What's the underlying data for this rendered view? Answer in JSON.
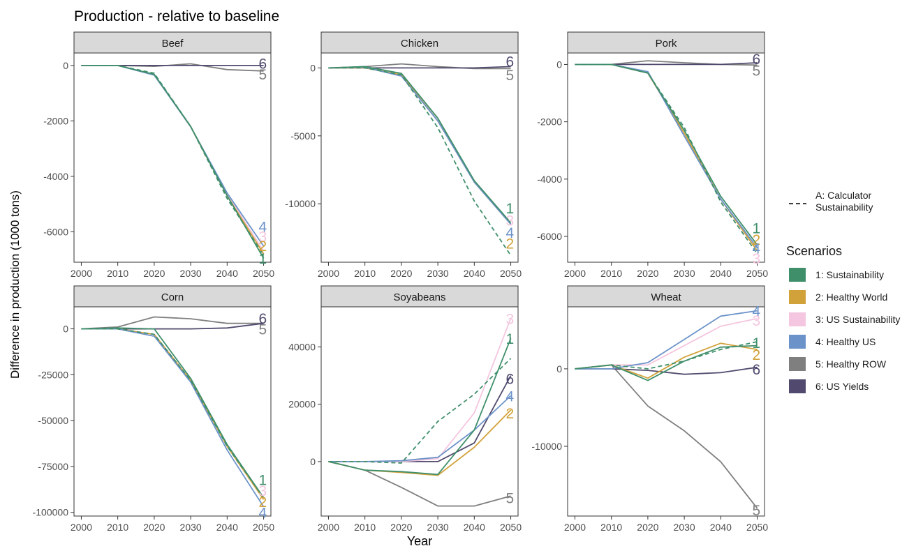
{
  "chart_data": {
    "type": "line",
    "title": "Production - relative to baseline",
    "xlabel": "Year",
    "ylabel": "Difference in production (1000 tons)",
    "x": [
      2000,
      2010,
      2020,
      2030,
      2040,
      2050
    ],
    "x_ticks": [
      "2000",
      "2010",
      "2020",
      "2030",
      "2040",
      "2050"
    ],
    "grid": false,
    "legend_position": "right",
    "legend_linetype_label": "A: Calculator Sustainability",
    "legend_title": "Scenarios",
    "scenarios": [
      {
        "id": "1",
        "name": "1: Sustainability",
        "color": "#3f8f6b"
      },
      {
        "id": "2",
        "name": "2: Healthy World",
        "color": "#d1a23a"
      },
      {
        "id": "3",
        "name": "3: US Sustainability",
        "color": "#f4c6df"
      },
      {
        "id": "4",
        "name": "4: Healthy US",
        "color": "#6c93c9"
      },
      {
        "id": "5",
        "name": "5: Healthy ROW",
        "color": "#7f7f7f"
      },
      {
        "id": "6",
        "name": "6: US Yields",
        "color": "#514a6e"
      }
    ],
    "panels": [
      {
        "title": "Beef",
        "ylim": [
          -7100,
          450
        ],
        "yticks": [
          0,
          -2000,
          -4000,
          -6000
        ],
        "ytick_labels": [
          "0",
          "-2000",
          "-4000",
          "-6000"
        ],
        "series": [
          {
            "id": "5",
            "values": [
              0,
              0,
              -30,
              60,
              -150,
              -200
            ]
          },
          {
            "id": "6",
            "values": [
              0,
              0,
              0,
              0,
              0,
              0
            ]
          },
          {
            "id": "3",
            "values": [
              0,
              0,
              -330,
              -2210,
              -4650,
              -6700
            ]
          },
          {
            "id": "2",
            "values": [
              0,
              0,
              -330,
              -2210,
              -4700,
              -6800
            ]
          },
          {
            "id": "4",
            "values": [
              0,
              0,
              -350,
              -2210,
              -4600,
              -6520
            ]
          },
          {
            "id": "1",
            "values": [
              0,
              0,
              -320,
              -2200,
              -4700,
              -6960
            ]
          },
          {
            "id": "A",
            "values": [
              0,
              0,
              -280,
              -2200,
              -4800,
              -6850
            ]
          }
        ],
        "end_labels": [
          {
            "text": "6",
            "id": "6",
            "y": 80
          },
          {
            "text": "5",
            "id": "5",
            "y": -300
          },
          {
            "text": "4",
            "id": "4",
            "y": -5800
          },
          {
            "text": "3",
            "id": "3",
            "y": -6150
          },
          {
            "text": "2",
            "id": "2",
            "y": -6500
          },
          {
            "text": "1",
            "id": "1",
            "y": -6950
          }
        ]
      },
      {
        "title": "Chicken",
        "ylim": [
          -14300,
          1100
        ],
        "yticks": [
          0,
          -5000,
          -10000
        ],
        "ytick_labels": [
          "0",
          "-5000",
          "-10000"
        ],
        "series": [
          {
            "id": "5",
            "values": [
              0,
              100,
              300,
              100,
              -50,
              -50
            ]
          },
          {
            "id": "6",
            "values": [
              0,
              0,
              0,
              0,
              0,
              100
            ]
          },
          {
            "id": "3",
            "values": [
              0,
              0,
              -500,
              -3900,
              -8400,
              -11400
            ]
          },
          {
            "id": "2",
            "values": [
              0,
              0,
              -500,
              -3900,
              -8400,
              -11500
            ]
          },
          {
            "id": "4",
            "values": [
              0,
              50,
              -600,
              -3900,
              -8400,
              -11500
            ]
          },
          {
            "id": "1",
            "values": [
              0,
              100,
              -400,
              -3700,
              -8300,
              -11400
            ]
          },
          {
            "id": "A",
            "values": [
              0,
              0,
              -500,
              -4400,
              -9800,
              -13800
            ]
          }
        ],
        "end_labels": [
          {
            "text": "6",
            "id": "6",
            "y": 500
          },
          {
            "text": "5",
            "id": "5",
            "y": -500
          },
          {
            "text": "1",
            "id": "1",
            "y": -10300
          },
          {
            "text": "3",
            "id": "3",
            "y": -11200
          },
          {
            "text": "4",
            "id": "4",
            "y": -12100
          },
          {
            "text": "2",
            "id": "2",
            "y": -12900
          }
        ]
      },
      {
        "title": "Pork",
        "ylim": [
          -6900,
          400
        ],
        "yticks": [
          0,
          -2000,
          -4000,
          -6000
        ],
        "ytick_labels": [
          "0",
          "-2000",
          "-4000",
          "-6000"
        ],
        "series": [
          {
            "id": "5",
            "values": [
              0,
              0,
              130,
              60,
              0,
              -20
            ]
          },
          {
            "id": "6",
            "values": [
              0,
              0,
              0,
              0,
              0,
              60
            ]
          },
          {
            "id": "3",
            "values": [
              0,
              0,
              -300,
              -2400,
              -4700,
              -6500
            ]
          },
          {
            "id": "2",
            "values": [
              0,
              0,
              -300,
              -2400,
              -4700,
              -6500
            ]
          },
          {
            "id": "4",
            "values": [
              0,
              0,
              -250,
              -2500,
              -4700,
              -6400
            ]
          },
          {
            "id": "1",
            "values": [
              0,
              0,
              -300,
              -2300,
              -4600,
              -6300
            ]
          },
          {
            "id": "A",
            "values": [
              0,
              0,
              -300,
              -2200,
              -4800,
              -6600
            ]
          }
        ],
        "end_labels": [
          {
            "text": "6",
            "id": "6",
            "y": 200
          },
          {
            "text": "5",
            "id": "5",
            "y": -200
          },
          {
            "text": "1",
            "id": "1",
            "y": -5700
          },
          {
            "text": "2",
            "id": "2",
            "y": -6100
          },
          {
            "text": "4",
            "id": "4",
            "y": -6400
          },
          {
            "text": "3",
            "id": "3",
            "y": -6750
          }
        ]
      },
      {
        "title": "Corn",
        "ylim": [
          -102000,
          12000
        ],
        "yticks": [
          0,
          -25000,
          -50000,
          -75000,
          -100000
        ],
        "ytick_labels": [
          "0",
          "-25000",
          "-50000",
          "-75000",
          "-100000"
        ],
        "series": [
          {
            "id": "5",
            "values": [
              0,
              1000,
              6500,
              5500,
              3000,
              3000
            ]
          },
          {
            "id": "6",
            "values": [
              0,
              0,
              0,
              0,
              500,
              3000
            ]
          },
          {
            "id": "3",
            "values": [
              0,
              0,
              -3000,
              -28000,
              -64000,
              -92000
            ]
          },
          {
            "id": "2",
            "values": [
              0,
              0,
              -3000,
              -28000,
              -64000,
              -93000
            ]
          },
          {
            "id": "4",
            "values": [
              0,
              0,
              -4000,
              -29000,
              -66000,
              -97000
            ]
          },
          {
            "id": "1",
            "values": [
              0,
              500,
              0,
              -27000,
              -63000,
              -92000
            ]
          },
          {
            "id": "A",
            "values": [
              0,
              0,
              -3000,
              -28000,
              -64000,
              -92000
            ]
          }
        ],
        "end_labels": [
          {
            "text": "6",
            "id": "6",
            "y": 6000
          },
          {
            "text": "5",
            "id": "5",
            "y": 0
          },
          {
            "text": "1",
            "id": "1",
            "y": -82000
          },
          {
            "text": "3",
            "id": "3",
            "y": -88000
          },
          {
            "text": "2",
            "id": "2",
            "y": -94000
          },
          {
            "text": "4",
            "id": "4",
            "y": -100000
          }
        ]
      },
      {
        "title": "Soyabeans",
        "ylim": [
          -19000,
          54000
        ],
        "yticks": [
          0,
          20000,
          40000
        ],
        "ytick_labels": [
          "0",
          "20000",
          "40000"
        ],
        "series": [
          {
            "id": "5",
            "values": [
              0,
              -3000,
              -9000,
              -15500,
              -15500,
              -12000
            ]
          },
          {
            "id": "6",
            "values": [
              0,
              0,
              0,
              0,
              6500,
              30000
            ]
          },
          {
            "id": "3",
            "values": [
              0,
              0,
              0,
              1000,
              17000,
              50000
            ]
          },
          {
            "id": "2",
            "values": [
              0,
              -3000,
              -3800,
              -4800,
              5000,
              18000
            ]
          },
          {
            "id": "4",
            "values": [
              0,
              0,
              300,
              1500,
              11000,
              23000
            ]
          },
          {
            "id": "1",
            "values": [
              0,
              -3000,
              -3500,
              -4500,
              11000,
              43000
            ]
          },
          {
            "id": "A",
            "values": [
              0,
              0,
              -500,
              14000,
              23500,
              36000
            ]
          }
        ],
        "end_labels": [
          {
            "text": "3",
            "id": "3",
            "y": 50000
          },
          {
            "text": "1",
            "id": "1",
            "y": 43000
          },
          {
            "text": "6",
            "id": "6",
            "y": 29000
          },
          {
            "text": "4",
            "id": "4",
            "y": 23000
          },
          {
            "text": "2",
            "id": "2",
            "y": 17000
          },
          {
            "text": "5",
            "id": "5",
            "y": -12500
          }
        ]
      },
      {
        "title": "Wheat",
        "ylim": [
          -19000,
          8000
        ],
        "yticks": [
          0,
          -10000
        ],
        "ytick_labels": [
          "0",
          "-10000"
        ],
        "series": [
          {
            "id": "5",
            "values": [
              0,
              500,
              -4800,
              -8000,
              -12000,
              -18000
            ]
          },
          {
            "id": "6",
            "values": [
              0,
              0,
              -200,
              -700,
              -500,
              200
            ]
          },
          {
            "id": "3",
            "values": [
              0,
              500,
              500,
              3000,
              5500,
              6500
            ]
          },
          {
            "id": "2",
            "values": [
              0,
              500,
              -1200,
              1500,
              3300,
              2500
            ]
          },
          {
            "id": "4",
            "values": [
              0,
              0,
              800,
              3800,
              6800,
              7500
            ]
          },
          {
            "id": "1",
            "values": [
              0,
              500,
              -1500,
              1000,
              2800,
              3000
            ]
          },
          {
            "id": "A",
            "values": [
              0,
              500,
              0,
              1000,
              2500,
              3500
            ]
          }
        ],
        "end_labels": [
          {
            "text": "4",
            "id": "4",
            "y": 7500
          },
          {
            "text": "3",
            "id": "3",
            "y": 6300
          },
          {
            "text": "1",
            "id": "1",
            "y": 3400
          },
          {
            "text": "2",
            "id": "2",
            "y": 1900
          },
          {
            "text": "6",
            "id": "6",
            "y": 0
          },
          {
            "text": "5",
            "id": "5",
            "y": -18200
          }
        ]
      }
    ]
  }
}
